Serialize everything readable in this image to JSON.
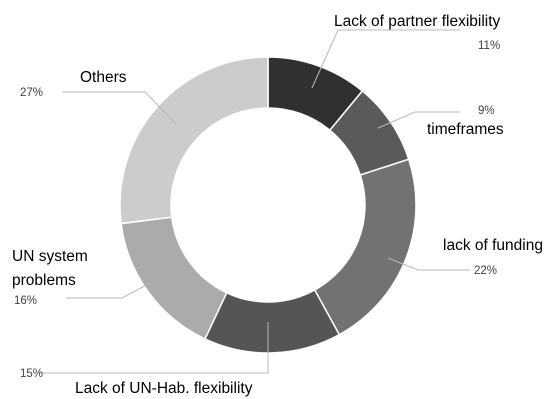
{
  "chart_data": {
    "type": "pie",
    "variant": "donut",
    "title": "",
    "start_angle_deg": 0,
    "direction": "clockwise",
    "legend": "none",
    "slices": [
      {
        "label": "Lack of partner flexibility",
        "value": 11,
        "value_label": "11%",
        "color": "#303030"
      },
      {
        "label": "timeframes",
        "value": 9,
        "value_label": "9%",
        "color": "#5a5a5a"
      },
      {
        "label": "lack of funding",
        "value": 22,
        "value_label": "22%",
        "color": "#727272"
      },
      {
        "label": "Lack of UN-Hab. flexibility",
        "value": 15,
        "value_label": "15%",
        "color": "#555555"
      },
      {
        "label": "UN system problems",
        "label_lines": [
          "UN system",
          "problems"
        ],
        "value": 16,
        "value_label": "16%",
        "color": "#ababab"
      },
      {
        "label": "Others",
        "value": 27,
        "value_label": "27%",
        "color": "#cccccc"
      }
    ]
  }
}
